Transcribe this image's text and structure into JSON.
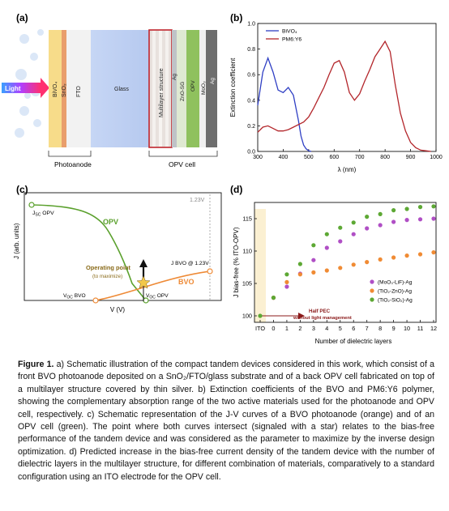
{
  "panel_a": {
    "label": "(a)",
    "light": "Light",
    "layers": [
      "BiVO₄",
      "SnO₂",
      "FTO",
      "Glass",
      "Multilayer structure",
      "Ag",
      "ZnO-SG",
      "OPV",
      "MoO₃",
      "Ag"
    ],
    "group_photoanode": "Photoanode",
    "group_opv": "OPV cell"
  },
  "panel_b": {
    "label": "(b)",
    "colors": {
      "bvo": "#2f3fc4",
      "pm6": "#b3262b"
    },
    "chart_data": {
      "type": "line",
      "xlabel": "λ (nm)",
      "ylabel": "Extinction coefficient",
      "xlim": [
        300,
        1000
      ],
      "ylim": [
        0,
        1.0
      ],
      "xticks": [
        "300",
        "400",
        "500",
        "600",
        "700",
        "800",
        "900",
        "1000"
      ],
      "yticks": [
        "0.0",
        "0.2",
        "0.4",
        "0.6",
        "0.8",
        "1.0"
      ],
      "legend": "top-left",
      "series": [
        {
          "name": "BiVO₄",
          "x": [
            300,
            320,
            340,
            360,
            380,
            400,
            420,
            440,
            460,
            470,
            480,
            490,
            500,
            510
          ],
          "y": [
            0.36,
            0.62,
            0.73,
            0.62,
            0.48,
            0.46,
            0.5,
            0.44,
            0.24,
            0.12,
            0.05,
            0.02,
            0.005,
            0.0
          ]
        },
        {
          "name": "PM6:Y6",
          "x": [
            300,
            320,
            340,
            360,
            380,
            400,
            420,
            440,
            460,
            480,
            500,
            520,
            540,
            560,
            580,
            600,
            620,
            640,
            660,
            680,
            700,
            720,
            740,
            760,
            780,
            800,
            820,
            840,
            860,
            880,
            900,
            920,
            940,
            960,
            980
          ],
          "y": [
            0.15,
            0.19,
            0.2,
            0.18,
            0.16,
            0.16,
            0.17,
            0.19,
            0.21,
            0.23,
            0.27,
            0.34,
            0.42,
            0.5,
            0.6,
            0.69,
            0.71,
            0.62,
            0.46,
            0.4,
            0.45,
            0.55,
            0.64,
            0.74,
            0.8,
            0.86,
            0.78,
            0.52,
            0.3,
            0.16,
            0.07,
            0.03,
            0.01,
            0.005,
            0.0
          ]
        }
      ]
    }
  },
  "panel_c": {
    "label": "(c)",
    "ylabel": "J (arb. units)",
    "xlabel": "V (V)",
    "v123": "1.23V",
    "jsc_opv": "J",
    "jsc_opv_sub": "SC",
    "jsc_opv_tail": " OPV",
    "opv": "OPV",
    "bvo": "BVO",
    "op1": "Operating point",
    "op2": "(to maximize)",
    "jbvo": "J BVO @ 1.23V",
    "voc_bvo": "V",
    "voc_bvo_sub": "OC",
    "voc_bvo_tail": " BVO",
    "voc_opv": "V",
    "voc_opv_sub": "OC",
    "voc_opv_tail": " OPV",
    "colors": {
      "opv": "#5aa02c",
      "bvo": "#ee8a36"
    }
  },
  "panel_d": {
    "label": "(d)",
    "chart_data": {
      "type": "scatter",
      "xlabel": "Number of dielectric layers",
      "ylabel": "J bias-free (% ITO-OPV)",
      "xticks": [
        "ITO",
        "0",
        "1",
        "2",
        "3",
        "4",
        "5",
        "6",
        "7",
        "8",
        "9",
        "10",
        "11",
        "12"
      ],
      "yticks": [
        "100",
        "105",
        "110",
        "115"
      ],
      "ylim": [
        99,
        117.5
      ],
      "ito_value": 100,
      "annotation": "Half PEC",
      "annotation2": "without light management",
      "legend": "bottom-right",
      "series": [
        {
          "name": "(MoO₃-LiF)-Ag",
          "color": "#b04fc5",
          "x": [
            0,
            1,
            2,
            3,
            4,
            5,
            6,
            7,
            8,
            9,
            10,
            11,
            12
          ],
          "y": [
            102.8,
            104.5,
            106.5,
            108.6,
            110.5,
            111.5,
            112.6,
            113.5,
            114.0,
            114.5,
            114.8,
            114.9,
            115.0
          ]
        },
        {
          "name": "(TiO₂-ZnO)-Ag",
          "color": "#f08b34",
          "x": [
            0,
            1,
            2,
            3,
            4,
            5,
            6,
            7,
            8,
            9,
            10,
            11,
            12
          ],
          "y": [
            102.8,
            105.2,
            106.4,
            106.7,
            107.0,
            107.4,
            107.9,
            108.3,
            108.7,
            109.0,
            109.3,
            109.5,
            109.8
          ]
        },
        {
          "name": "(TiO₂-SiO₂)-Ag",
          "color": "#5da834",
          "x": [
            0,
            1,
            2,
            3,
            4,
            5,
            6,
            7,
            8,
            9,
            10,
            11,
            12
          ],
          "y": [
            102.8,
            106.4,
            108.0,
            110.9,
            112.6,
            113.6,
            114.4,
            115.3,
            115.7,
            116.3,
            116.5,
            116.8,
            116.9
          ]
        }
      ]
    }
  },
  "caption": {
    "label": "Figure 1.",
    "text": " a) Schematic illustration of the compact tandem devices considered in this work, which consist of a front BVO photoanode deposited on a SnO₂/FTO/glass substrate and of a back OPV cell fabricated on top of a multilayer structure covered by thin silver. b) Extinction coefficients of the BVO and PM6:Y6 polymer, showing the complementary absorption range of the two active materials used for the photoanode and OPV cell, respectively. c) Schematic representation of the J-V curves of a BVO photoanode (orange) and of an OPV cell (green). The point where both curves intersect (signaled with a star) relates to the bias-free performance of the tandem device and was considered as the parameter to maximize by the inverse design optimization. d) Predicted increase in the bias-free current density of the tandem device with the number of dielectric layers in the multilayer structure, for different combination of materials, comparatively to a standard configuration using an ITO electrode for the OPV cell."
  }
}
